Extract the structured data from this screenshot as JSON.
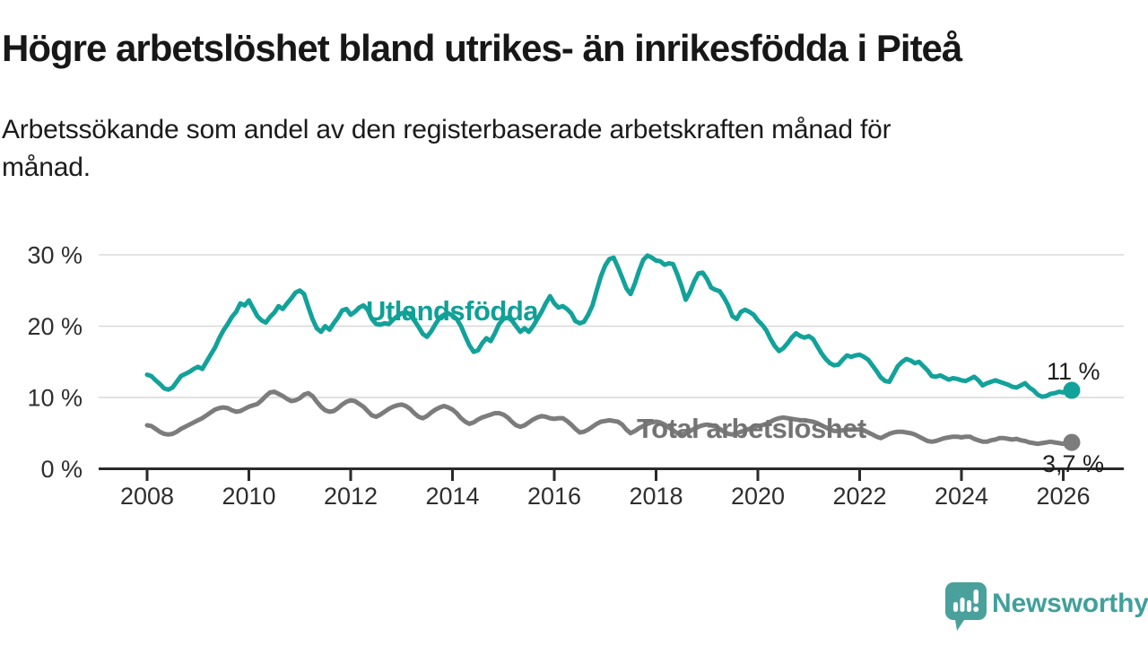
{
  "title": "Högre arbetslöshet bland utrikes- än inrikesfödda i Piteå",
  "subtitle_lines": [
    "Arbetssökande som andel av den registerbaserade arbetskraften månad för",
    "månad."
  ],
  "footer": {
    "brand": "Newsworthy"
  },
  "colors": {
    "foreign_born_line": "#12a29a",
    "total_line": "#7c7c7c",
    "grid": "#d8d8d8",
    "axis": "#2a2a2a",
    "logo_teal": "#4aa19c"
  },
  "chart_data": {
    "type": "line",
    "frequency": "monthly",
    "start": "2008-01",
    "end": "2026-03",
    "x_tick_labels": [
      "2008",
      "2010",
      "2012",
      "2014",
      "2016",
      "2018",
      "2020",
      "2022",
      "2024",
      "2026"
    ],
    "x_tick_years": [
      2008,
      2010,
      2012,
      2014,
      2016,
      2018,
      2020,
      2022,
      2024,
      2026
    ],
    "y_tick_labels": [
      "0 %",
      "10 %",
      "20 %",
      "30 %"
    ],
    "y_tick_values": [
      0,
      10,
      20,
      30
    ],
    "ylim": [
      0,
      32
    ],
    "grid": true,
    "legend_position": "inline-labels",
    "series": [
      {
        "name": "Utlandsfödda",
        "end_label": "11 %",
        "end_value": 11,
        "values": [
          13.2,
          13.0,
          12.4,
          11.9,
          11.3,
          11.1,
          11.4,
          12.2,
          13.0,
          13.3,
          13.6,
          14.0,
          14.3,
          14.0,
          15.0,
          16.0,
          17.0,
          18.3,
          19.4,
          20.3,
          21.3,
          22.0,
          23.2,
          22.9,
          23.6,
          22.5,
          21.4,
          20.8,
          20.5,
          21.3,
          21.9,
          22.8,
          22.4,
          23.2,
          23.9,
          24.7,
          25.0,
          24.5,
          22.7,
          21.0,
          19.7,
          19.2,
          20.0,
          19.5,
          20.4,
          21.2,
          22.2,
          22.4,
          21.6,
          22.0,
          22.6,
          22.9,
          22.3,
          21.0,
          20.3,
          20.2,
          20.4,
          20.3,
          20.9,
          21.4,
          21.8,
          22.0,
          21.6,
          20.8,
          19.9,
          18.9,
          18.5,
          19.3,
          20.3,
          21.2,
          21.6,
          21.8,
          21.5,
          21.0,
          20.0,
          18.6,
          17.3,
          16.4,
          16.6,
          17.6,
          18.3,
          17.9,
          19.0,
          20.3,
          21.0,
          21.2,
          20.8,
          20.0,
          19.2,
          19.7,
          19.2,
          20.0,
          21.0,
          22.0,
          23.2,
          24.2,
          23.2,
          22.6,
          22.8,
          22.4,
          21.8,
          20.7,
          20.4,
          20.6,
          21.6,
          22.9,
          25.0,
          27.0,
          28.5,
          29.4,
          29.6,
          28.3,
          26.8,
          25.3,
          24.5,
          26.0,
          27.8,
          29.3,
          29.9,
          29.6,
          29.2,
          29.1,
          28.6,
          28.8,
          28.7,
          27.3,
          25.6,
          23.7,
          24.8,
          26.3,
          27.4,
          27.5,
          26.6,
          25.4,
          25.1,
          24.9,
          24.0,
          22.9,
          21.4,
          21.0,
          22.0,
          22.3,
          22.0,
          21.6,
          20.8,
          20.2,
          19.4,
          18.2,
          17.2,
          16.5,
          16.9,
          17.6,
          18.4,
          19.0,
          18.6,
          18.4,
          18.6,
          18.2,
          17.2,
          16.2,
          15.4,
          14.8,
          14.5,
          14.6,
          15.3,
          15.9,
          15.7,
          15.9,
          16.0,
          15.7,
          15.3,
          14.5,
          13.7,
          12.8,
          12.3,
          12.2,
          13.3,
          14.4,
          15.0,
          15.4,
          15.2,
          14.8,
          15.0,
          14.4,
          13.8,
          13.0,
          12.9,
          13.1,
          12.8,
          12.5,
          12.7,
          12.6,
          12.4,
          12.3,
          12.6,
          12.9,
          12.4,
          11.7,
          12.0,
          12.2,
          12.4,
          12.2,
          12.0,
          11.8,
          11.5,
          11.4,
          11.7,
          12.0,
          11.4,
          11.0,
          10.4,
          10.1,
          10.2,
          10.5,
          10.6,
          10.8,
          10.7,
          10.9,
          11.0
        ]
      },
      {
        "name": "Total arbetslöshet",
        "end_label": "3,7 %",
        "end_value": 3.7,
        "values": [
          6.1,
          6.0,
          5.6,
          5.2,
          4.9,
          4.8,
          4.9,
          5.2,
          5.6,
          5.9,
          6.2,
          6.5,
          6.8,
          7.1,
          7.5,
          7.9,
          8.3,
          8.5,
          8.6,
          8.5,
          8.2,
          8.0,
          8.1,
          8.4,
          8.7,
          8.9,
          9.1,
          9.6,
          10.2,
          10.7,
          10.8,
          10.5,
          10.2,
          9.8,
          9.5,
          9.6,
          9.9,
          10.4,
          10.6,
          10.2,
          9.4,
          8.7,
          8.2,
          8.0,
          8.1,
          8.5,
          9.0,
          9.4,
          9.6,
          9.5,
          9.1,
          8.7,
          8.1,
          7.5,
          7.3,
          7.6,
          8.0,
          8.4,
          8.7,
          8.9,
          9.0,
          8.8,
          8.4,
          7.8,
          7.3,
          7.1,
          7.4,
          7.9,
          8.3,
          8.6,
          8.8,
          8.6,
          8.3,
          7.8,
          7.1,
          6.6,
          6.3,
          6.5,
          6.9,
          7.2,
          7.4,
          7.6,
          7.8,
          7.8,
          7.6,
          7.2,
          6.6,
          6.1,
          5.9,
          6.1,
          6.5,
          6.9,
          7.2,
          7.4,
          7.3,
          7.1,
          7.0,
          7.1,
          7.1,
          6.7,
          6.2,
          5.6,
          5.1,
          5.2,
          5.5,
          5.9,
          6.3,
          6.6,
          6.7,
          6.8,
          6.7,
          6.6,
          6.2,
          5.5,
          5.0,
          5.3,
          5.7,
          6.0,
          6.3,
          6.5,
          6.6,
          6.5,
          6.2,
          5.8,
          5.4,
          5.0,
          4.8,
          5.0,
          5.3,
          5.6,
          5.9,
          6.1,
          6.2,
          6.1,
          5.9,
          5.6,
          5.2,
          4.9,
          4.8,
          5.0,
          5.2,
          5.4,
          5.6,
          5.8,
          6.0,
          6.1,
          6.3,
          6.6,
          6.9,
          7.1,
          7.2,
          7.1,
          7.0,
          6.9,
          6.8,
          6.8,
          6.7,
          6.6,
          6.4,
          6.1,
          5.8,
          5.5,
          5.3,
          5.3,
          5.4,
          5.5,
          5.5,
          5.5,
          5.5,
          5.4,
          5.1,
          4.8,
          4.5,
          4.3,
          4.6,
          4.9,
          5.1,
          5.2,
          5.2,
          5.1,
          5.0,
          4.8,
          4.5,
          4.2,
          3.9,
          3.8,
          3.9,
          4.1,
          4.3,
          4.4,
          4.5,
          4.5,
          4.4,
          4.5,
          4.5,
          4.2,
          4.0,
          3.8,
          3.8,
          4.0,
          4.1,
          4.3,
          4.3,
          4.2,
          4.1,
          4.2,
          4.0,
          3.9,
          3.7,
          3.6,
          3.5,
          3.6,
          3.7,
          3.8,
          3.7,
          3.6,
          3.5,
          3.6,
          3.7
        ]
      }
    ]
  }
}
